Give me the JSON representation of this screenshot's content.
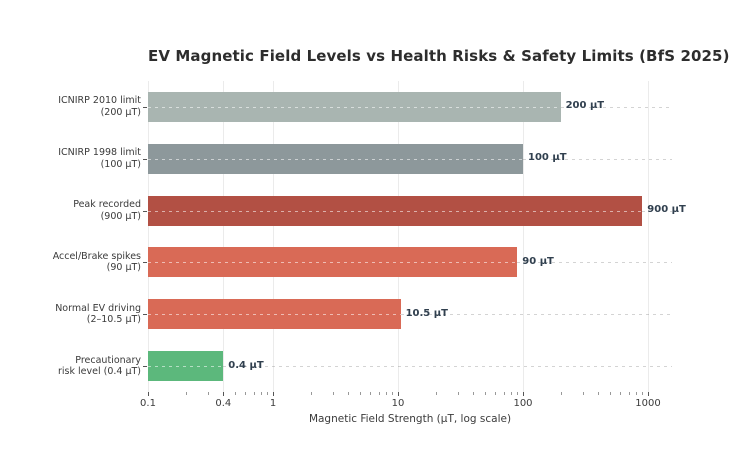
{
  "title": "EV Magnetic Field Levels vs Health Risks & Safety Limits (BfS 2025)",
  "chart_data": {
    "type": "bar",
    "orientation": "horizontal",
    "x_scale": "log",
    "title": "EV Magnetic Field Levels vs Health Risks & Safety Limits (BfS 2025)",
    "xlabel": "Magnetic Field Strength (µT, log scale)",
    "ylabel": "",
    "xlim": [
      0.1,
      1550
    ],
    "grid": "on",
    "legend": "none",
    "x_major_ticks": [
      {
        "value": 0.1,
        "label": "0.1"
      },
      {
        "value": 0.4,
        "label": "0.4"
      },
      {
        "value": 1,
        "label": "1"
      },
      {
        "value": 10,
        "label": "10"
      },
      {
        "value": 100,
        "label": "100"
      },
      {
        "value": 1000,
        "label": "1000"
      }
    ],
    "bars": [
      {
        "label_line1": "ICNIRP 2010 limit",
        "label_line2": "(200 µT)",
        "value": 200,
        "value_label": "200 µT",
        "color": "#a9b5b1"
      },
      {
        "label_line1": "ICNIRP 1998 limit",
        "label_line2": "(100 µT)",
        "value": 100,
        "value_label": "100 µT",
        "color": "#8d989b"
      },
      {
        "label_line1": "Peak recorded",
        "label_line2": "(900 µT)",
        "value": 900,
        "value_label": "900 µT",
        "color": "#b25044"
      },
      {
        "label_line1": "Accel/Brake spikes",
        "label_line2": "(90 µT)",
        "value": 90,
        "value_label": "90 µT",
        "color": "#d96a56"
      },
      {
        "label_line1": "Normal EV driving",
        "label_line2": "(2–10.5 µT)",
        "value": 10.5,
        "value_label": "10.5 µT",
        "color": "#d96a56"
      },
      {
        "label_line1": "Precautionary",
        "label_line2": "risk level (0.4 µT)",
        "value": 0.4,
        "value_label": "0.4 µT",
        "color": "#5cb87c"
      }
    ],
    "colors": {
      "background": "#ffffff",
      "title_text": "#2d2d2d",
      "value_label_text": "#31404f",
      "axis_text": "#3b3b3b",
      "safety_limit_light": "#a9b5b1",
      "safety_limit_dark": "#8d989b",
      "peak_red": "#b25044",
      "ev_salmon": "#d96a56",
      "precaution_green": "#5cb87c"
    }
  }
}
